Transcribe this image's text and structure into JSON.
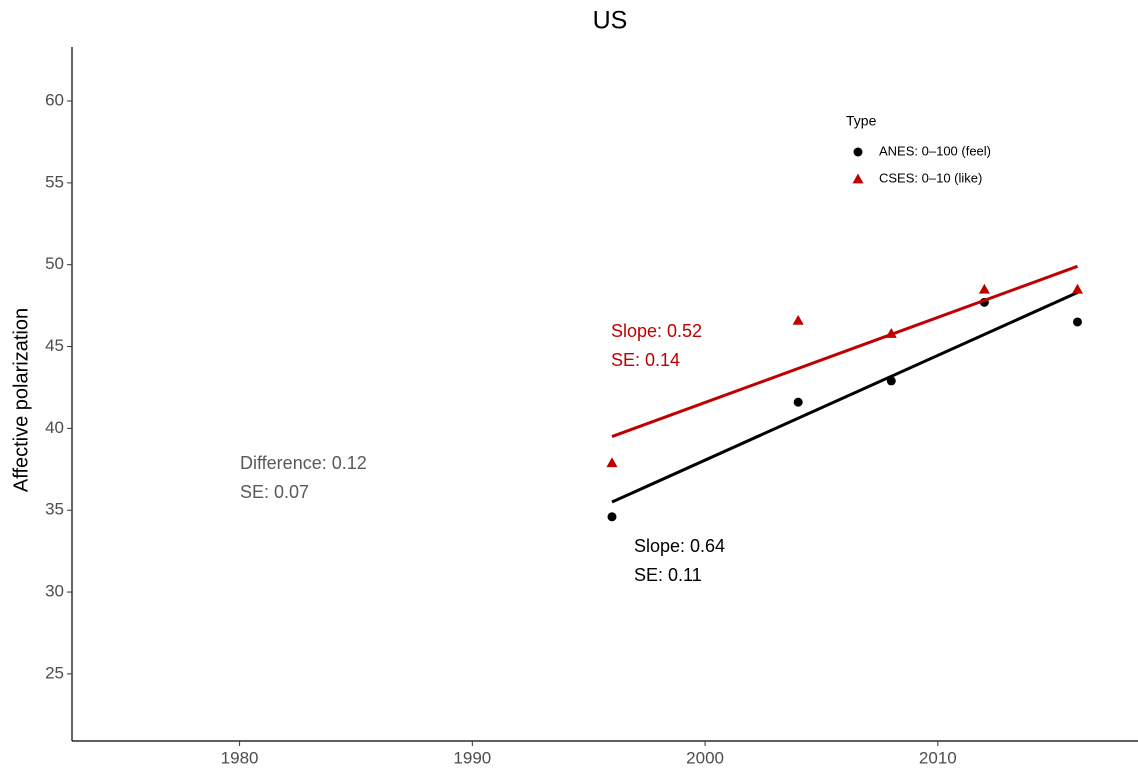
{
  "chart_data": {
    "type": "scatter",
    "title": "US",
    "y_label": "Affective polarization",
    "legend_title": "Type",
    "x": [
      1996,
      2004,
      2008,
      2012,
      2016
    ],
    "series": [
      {
        "name": "ANES: 0–100 (feel)",
        "color": "#000000",
        "marker": "circle",
        "values": [
          34.6,
          41.6,
          42.9,
          47.7,
          46.5
        ],
        "fit": {
          "x": [
            1996,
            2016
          ],
          "values": [
            35.5,
            48.3
          ]
        }
      },
      {
        "name": "CSES: 0–10 (like)",
        "color": "#c00000",
        "marker": "triangle",
        "values": [
          37.9,
          46.6,
          45.8,
          48.5,
          48.5
        ],
        "fit": {
          "x": [
            1996,
            2016
          ],
          "values": [
            39.5,
            49.9
          ]
        }
      }
    ],
    "annotations": [
      {
        "lines": [
          "Slope: 0.64",
          "SE: 0.11"
        ],
        "color": "#000000"
      },
      {
        "lines": [
          "Slope: 0.52",
          "SE: 0.14"
        ],
        "color": "#c00000"
      },
      {
        "lines": [
          "Difference: 0.12",
          "SE: 0.07"
        ],
        "color": "#595959"
      }
    ],
    "xlim": [
      1972.8,
      2018.6
    ],
    "ylim": [
      20.9,
      63.3
    ],
    "xticks": [
      1980,
      1990,
      2000,
      2010
    ],
    "yticks": [
      25,
      30,
      35,
      40,
      45,
      50,
      55,
      60
    ]
  }
}
